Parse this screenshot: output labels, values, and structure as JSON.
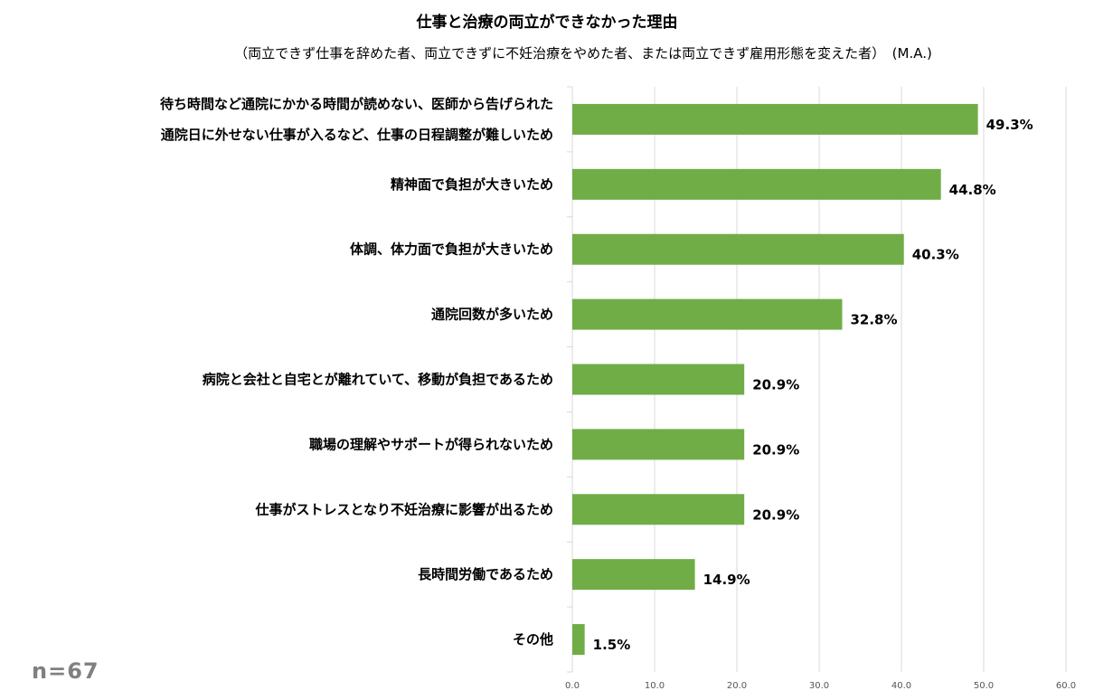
{
  "chart_data": {
    "type": "bar",
    "orientation": "horizontal",
    "title": "仕事と治療の両立ができなかった理由",
    "subtitle": "（両立できず仕事を辞めた者、両立できずに不妊治療をやめた者、または両立できず雇用形態を変えた者）　(M.A.)",
    "categories": [
      [
        "待ち時間など通院にかかる時間が読めない、医師から告げられた",
        "通院日に外せない仕事が入るなど、仕事の日程調整が難しいため"
      ],
      [
        "精神面で負担が大きいため"
      ],
      [
        "体調、体力面で負担が大きいため"
      ],
      [
        "通院回数が多いため"
      ],
      [
        "病院と会社と自宅とが離れていて、移動が負担であるため"
      ],
      [
        "職場の理解やサポートが得られないため"
      ],
      [
        "仕事がストレスとなり不妊治療に影響が出るため"
      ],
      [
        "長時間労働であるため"
      ],
      [
        "その他"
      ]
    ],
    "values": [
      49.3,
      44.8,
      40.3,
      32.8,
      20.9,
      20.9,
      20.9,
      14.9,
      1.5
    ],
    "value_labels": [
      "49.3%",
      "44.8%",
      "40.3%",
      "32.8%",
      "20.9%",
      "20.9%",
      "20.9%",
      "14.9%",
      "1.5%"
    ],
    "xlim": [
      0,
      60
    ],
    "xticks": [
      "0.0",
      "10.0",
      "20.0",
      "30.0",
      "40.0",
      "50.0",
      "60.0"
    ],
    "grid": true,
    "bar_color": "#70AD47",
    "grid_color": "#D9D9D9"
  },
  "sample_note": "n=67"
}
